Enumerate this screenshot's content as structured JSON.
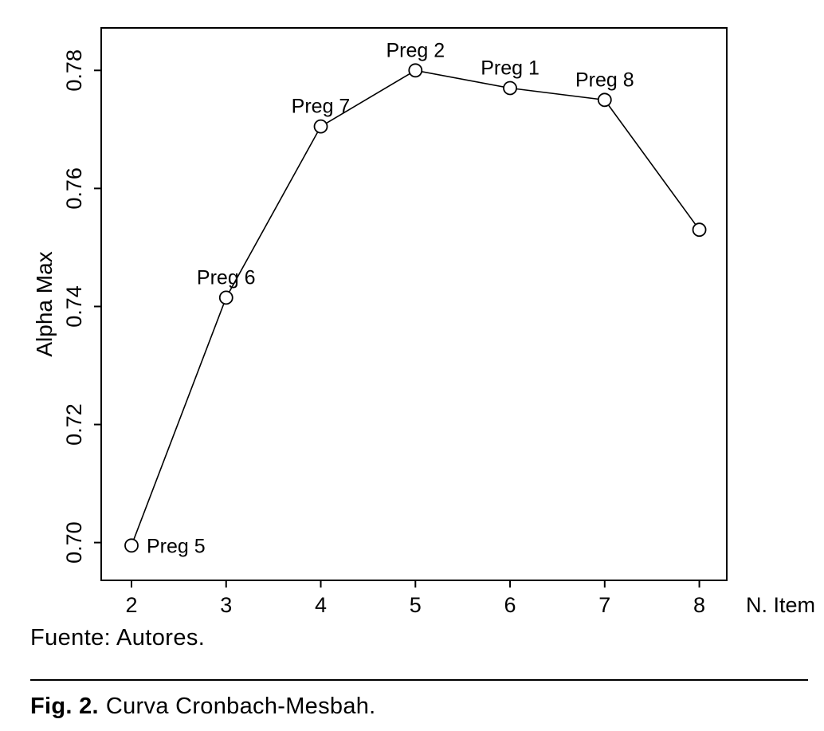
{
  "chart_data": {
    "type": "line",
    "title": "",
    "xlabel": "N. Item",
    "ylabel": "Alpha Max",
    "x": [
      2,
      3,
      4,
      5,
      6,
      7,
      8
    ],
    "y": [
      0.6995,
      0.7415,
      0.7705,
      0.78,
      0.777,
      0.775,
      0.753
    ],
    "point_labels": [
      "Preg 5",
      "Preg 6",
      "Preg 7",
      "Preg 2",
      "Preg 1",
      "Preg 8",
      ""
    ],
    "label_positions": [
      "right",
      "above",
      "above",
      "above",
      "above",
      "above",
      "none"
    ],
    "x_ticks": [
      2,
      3,
      4,
      5,
      6,
      7,
      8
    ],
    "x_tick_labels": [
      "2",
      "3",
      "4",
      "5",
      "6",
      "7",
      "8"
    ],
    "y_ticks": [
      0.7,
      0.72,
      0.74,
      0.76,
      0.78
    ],
    "y_tick_labels": [
      "0.70",
      "0.72",
      "0.74",
      "0.76",
      "0.78"
    ],
    "xlim": [
      1.68,
      8.29
    ],
    "ylim": [
      0.6936,
      0.7872
    ],
    "grid": false,
    "legend": "none",
    "marker": "open-circle",
    "line_color": "#000000",
    "marker_fill": "#ffffff",
    "axis_color": "#000000"
  },
  "source_note": "Fuente: Autores.",
  "figure_caption": {
    "label": "Fig. 2.",
    "text": "Curva Cronbach-Mesbah."
  }
}
